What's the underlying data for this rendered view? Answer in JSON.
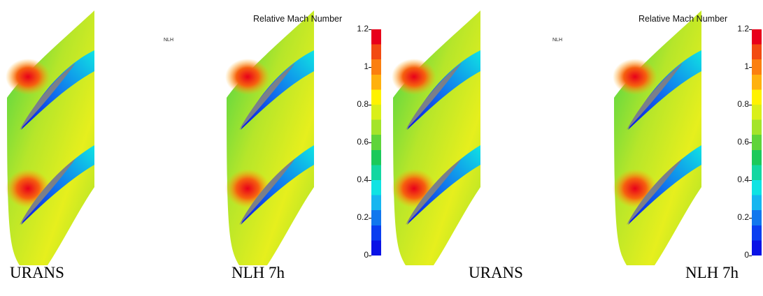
{
  "captions": [
    "URANS",
    "NLH 7h",
    "URANS",
    "NLH 7h"
  ],
  "small_labels": [
    "NLH",
    "NLH"
  ],
  "colorbar": {
    "title": "Relative Mach Number",
    "ticks": [
      "1.2",
      "1",
      "0.8",
      "0.6",
      "0.4",
      "0.2",
      "0"
    ],
    "colors": [
      "#e8001a",
      "#f24a12",
      "#fb7f0f",
      "#ffb10e",
      "#fff200",
      "#d9ef1a",
      "#a4e42a",
      "#5fd43a",
      "#1cc95a",
      "#13d7a1",
      "#0fe3e3",
      "#16b6f0",
      "#1177ee",
      "#0a3ef0",
      "#0a12e6"
    ]
  },
  "views": [
    {
      "panels": [
        "URANS",
        "NLH 7h"
      ]
    },
    {
      "panels": [
        "URANS",
        "NLH 7h"
      ]
    }
  ]
}
